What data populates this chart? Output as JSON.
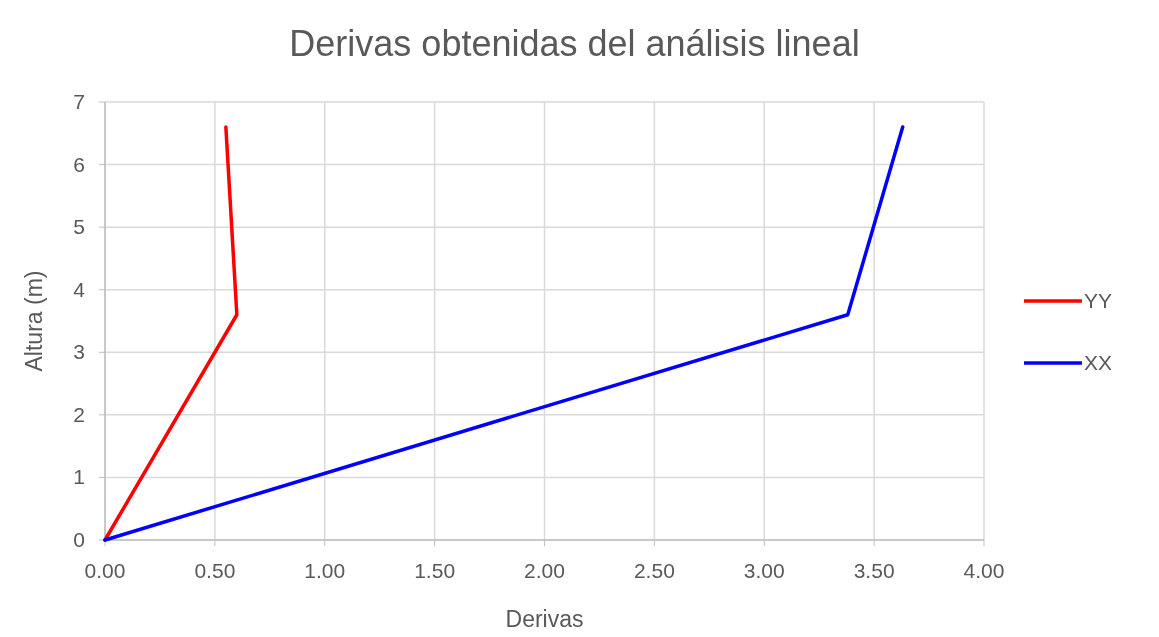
{
  "chart_data": {
    "type": "line",
    "title": "Derivas obtenidas del análisis lineal",
    "xlabel": "Derivas",
    "ylabel": "Altura (m)",
    "series": [
      {
        "name": "YY",
        "color": "#ff0000",
        "x": [
          0,
          0.6,
          0.55
        ],
        "values": [
          0,
          3.6,
          6.6
        ]
      },
      {
        "name": "XX",
        "color": "#0000ff",
        "x": [
          0,
          3.38,
          3.63
        ],
        "values": [
          0,
          3.6,
          6.6
        ]
      }
    ],
    "xlim": [
      0,
      4
    ],
    "xticks": [
      {
        "value": 0,
        "label": "0.00"
      },
      {
        "value": 0.5,
        "label": "0.50"
      },
      {
        "value": 1,
        "label": "1.00"
      },
      {
        "value": 1.5,
        "label": "1.50"
      },
      {
        "value": 2,
        "label": "2.00"
      },
      {
        "value": 2.5,
        "label": "2.50"
      },
      {
        "value": 3,
        "label": "3.00"
      },
      {
        "value": 3.5,
        "label": "3.50"
      },
      {
        "value": 4,
        "label": "4.00"
      }
    ],
    "ylim": [
      0,
      7
    ],
    "yticks": [
      0,
      1,
      2,
      3,
      4,
      5,
      6,
      7
    ],
    "grid": true,
    "legend": "right",
    "marker": "none",
    "line_style": "solid"
  }
}
